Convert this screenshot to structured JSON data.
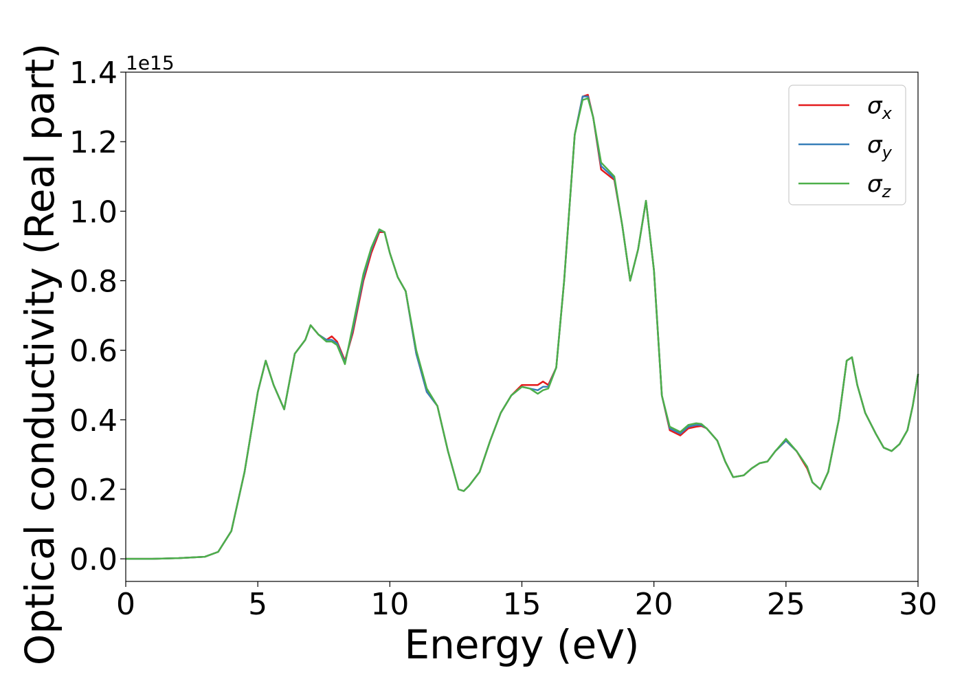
{
  "chart_data": {
    "type": "line",
    "xlabel": "Energy (eV)",
    "ylabel": "Optical conductivity (Real part)",
    "y_offset_text": "1e15",
    "xlim": [
      0,
      30
    ],
    "ylim": [
      -0.065,
      1.4
    ],
    "x_ticks": [
      0,
      5,
      10,
      15,
      20,
      25,
      30
    ],
    "x_tick_labels": [
      "0",
      "5",
      "10",
      "15",
      "20",
      "25",
      "30"
    ],
    "y_ticks": [
      0.0,
      0.2,
      0.4,
      0.6,
      0.8,
      1.0,
      1.2,
      1.4
    ],
    "y_tick_labels": [
      "0.0",
      "0.2",
      "0.4",
      "0.6",
      "0.8",
      "1.0",
      "1.2",
      "1.4"
    ],
    "grid": false,
    "legend_position": "top-right",
    "x": [
      0,
      1,
      2,
      3,
      3.5,
      4,
      4.5,
      5,
      5.3,
      5.6,
      6.0,
      6.4,
      6.8,
      7.0,
      7.3,
      7.6,
      7.8,
      8.0,
      8.3,
      8.6,
      9.0,
      9.3,
      9.6,
      9.8,
      10.0,
      10.3,
      10.6,
      11.0,
      11.4,
      11.8,
      12.2,
      12.6,
      12.8,
      13.0,
      13.4,
      13.8,
      14.2,
      14.6,
      15.0,
      15.3,
      15.6,
      15.8,
      16.0,
      16.3,
      16.6,
      17.0,
      17.3,
      17.5,
      17.7,
      18.0,
      18.5,
      18.8,
      19.1,
      19.4,
      19.7,
      20.0,
      20.3,
      20.6,
      21.0,
      21.3,
      21.6,
      21.8,
      22.0,
      22.4,
      22.7,
      23.0,
      23.4,
      23.7,
      24.0,
      24.3,
      24.6,
      25.0,
      25.4,
      25.8,
      26.0,
      26.3,
      26.6,
      27.0,
      27.3,
      27.5,
      27.7,
      28.0,
      28.4,
      28.7,
      29.0,
      29.3,
      29.6,
      29.8,
      30.0
    ],
    "series": [
      {
        "name": "σx",
        "label_main": "σ",
        "label_sub": "x",
        "color": "#e41a1c",
        "values": [
          0,
          0,
          0.002,
          0.006,
          0.02,
          0.08,
          0.25,
          0.48,
          0.57,
          0.5,
          0.43,
          0.59,
          0.63,
          0.672,
          0.645,
          0.63,
          0.64,
          0.625,
          0.57,
          0.65,
          0.8,
          0.88,
          0.94,
          0.94,
          0.88,
          0.81,
          0.77,
          0.59,
          0.48,
          0.44,
          0.31,
          0.2,
          0.195,
          0.21,
          0.25,
          0.34,
          0.42,
          0.47,
          0.5,
          0.5,
          0.5,
          0.51,
          0.5,
          0.55,
          0.8,
          1.22,
          1.33,
          1.335,
          1.27,
          1.12,
          1.09,
          0.96,
          0.8,
          0.89,
          1.03,
          0.83,
          0.47,
          0.37,
          0.355,
          0.375,
          0.38,
          0.382,
          0.375,
          0.34,
          0.28,
          0.235,
          0.24,
          0.26,
          0.275,
          0.28,
          0.31,
          0.34,
          0.31,
          0.26,
          0.22,
          0.2,
          0.25,
          0.4,
          0.57,
          0.58,
          0.5,
          0.42,
          0.36,
          0.32,
          0.31,
          0.33,
          0.37,
          0.44,
          0.53
        ]
      },
      {
        "name": "σy",
        "label_main": "σ",
        "label_sub": "y",
        "color": "#377eb8",
        "values": [
          0,
          0,
          0.002,
          0.006,
          0.02,
          0.08,
          0.25,
          0.48,
          0.57,
          0.5,
          0.43,
          0.59,
          0.63,
          0.672,
          0.645,
          0.63,
          0.63,
          0.62,
          0.565,
          0.66,
          0.81,
          0.89,
          0.945,
          0.94,
          0.88,
          0.81,
          0.77,
          0.59,
          0.48,
          0.44,
          0.31,
          0.2,
          0.195,
          0.21,
          0.25,
          0.34,
          0.42,
          0.47,
          0.495,
          0.49,
          0.485,
          0.495,
          0.495,
          0.55,
          0.8,
          1.22,
          1.33,
          1.33,
          1.27,
          1.13,
          1.095,
          0.96,
          0.8,
          0.89,
          1.03,
          0.83,
          0.47,
          0.375,
          0.36,
          0.38,
          0.385,
          0.385,
          0.375,
          0.34,
          0.28,
          0.235,
          0.24,
          0.26,
          0.275,
          0.28,
          0.31,
          0.34,
          0.31,
          0.265,
          0.22,
          0.2,
          0.25,
          0.4,
          0.57,
          0.58,
          0.5,
          0.42,
          0.36,
          0.32,
          0.31,
          0.33,
          0.37,
          0.44,
          0.53
        ]
      },
      {
        "name": "σz",
        "label_main": "σ",
        "label_sub": "z",
        "color": "#4daf4a",
        "values": [
          0,
          0,
          0.002,
          0.006,
          0.02,
          0.08,
          0.25,
          0.48,
          0.57,
          0.5,
          0.43,
          0.59,
          0.63,
          0.672,
          0.645,
          0.625,
          0.625,
          0.615,
          0.56,
          0.67,
          0.82,
          0.895,
          0.948,
          0.94,
          0.88,
          0.81,
          0.77,
          0.6,
          0.49,
          0.44,
          0.31,
          0.2,
          0.195,
          0.21,
          0.25,
          0.34,
          0.42,
          0.47,
          0.495,
          0.49,
          0.475,
          0.485,
          0.49,
          0.55,
          0.8,
          1.22,
          1.32,
          1.325,
          1.27,
          1.14,
          1.1,
          0.96,
          0.8,
          0.89,
          1.03,
          0.83,
          0.47,
          0.38,
          0.365,
          0.385,
          0.39,
          0.388,
          0.375,
          0.34,
          0.28,
          0.235,
          0.24,
          0.26,
          0.275,
          0.28,
          0.31,
          0.345,
          0.31,
          0.265,
          0.22,
          0.2,
          0.25,
          0.4,
          0.57,
          0.58,
          0.5,
          0.42,
          0.36,
          0.32,
          0.31,
          0.33,
          0.37,
          0.44,
          0.53
        ]
      }
    ]
  }
}
